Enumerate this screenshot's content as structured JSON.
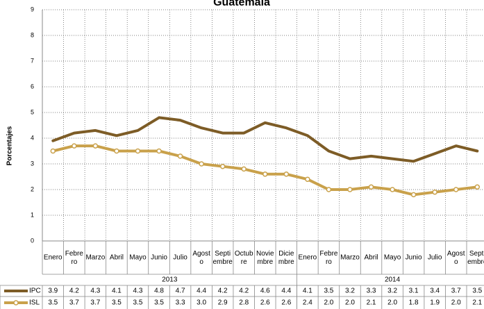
{
  "chart_data": {
    "type": "line",
    "title": "Guatemala",
    "y_label": "Porcentajes",
    "categories": [
      "Enero",
      "Febrero",
      "Marzo",
      "Abril",
      "Mayo",
      "Junio",
      "Julio",
      "Agosto",
      "Septiembre",
      "Octubre",
      "Noviembre",
      "Diciembre",
      "Enero",
      "Febrero",
      "Marzo",
      "Abril",
      "Mayo",
      "Junio",
      "Julio",
      "Agosto",
      "Septiembre"
    ],
    "groups": [
      {
        "label": "2013",
        "count": 12
      },
      {
        "label": "2014",
        "count": 9
      }
    ],
    "series": [
      {
        "name": "IPC",
        "color": "#7d5c26",
        "marker": false,
        "values": [
          3.9,
          4.2,
          4.3,
          4.1,
          4.3,
          4.8,
          4.7,
          4.4,
          4.2,
          4.2,
          4.6,
          4.4,
          4.1,
          3.5,
          3.2,
          3.3,
          3.2,
          3.1,
          3.4,
          3.7,
          3.5
        ],
        "value_labels": [
          "3.9",
          "4.2",
          "4.3",
          "4.1",
          "4.3",
          "4.8",
          "4.7",
          "4.4",
          "4.2",
          "4.2",
          "4.6",
          "4.4",
          "4.1",
          "3.5",
          "3.2",
          "3.3",
          "3.2",
          "3.1",
          "3.4",
          "3.7",
          "3.5"
        ]
      },
      {
        "name": "ISL",
        "color": "#c9a14b",
        "marker": true,
        "values": [
          3.5,
          3.7,
          3.7,
          3.5,
          3.5,
          3.5,
          3.3,
          3.0,
          2.9,
          2.8,
          2.6,
          2.6,
          2.4,
          2.0,
          2.0,
          2.1,
          2.0,
          1.8,
          1.9,
          2.0,
          2.1
        ],
        "value_labels": [
          "3.5",
          "3.7",
          "3.7",
          "3.5",
          "3.5",
          "3.5",
          "3.3",
          "3.0",
          "2.9",
          "2.8",
          "2.6",
          "2.6",
          "2.4",
          "2.0",
          "2.0",
          "2.1",
          "2.0",
          "1.8",
          "1.9",
          "2.0",
          "2.1"
        ]
      }
    ],
    "ylim": [
      0,
      9
    ],
    "yticks": [
      0,
      1,
      2,
      3,
      4,
      5,
      6,
      7,
      8,
      9
    ],
    "grid": true
  }
}
